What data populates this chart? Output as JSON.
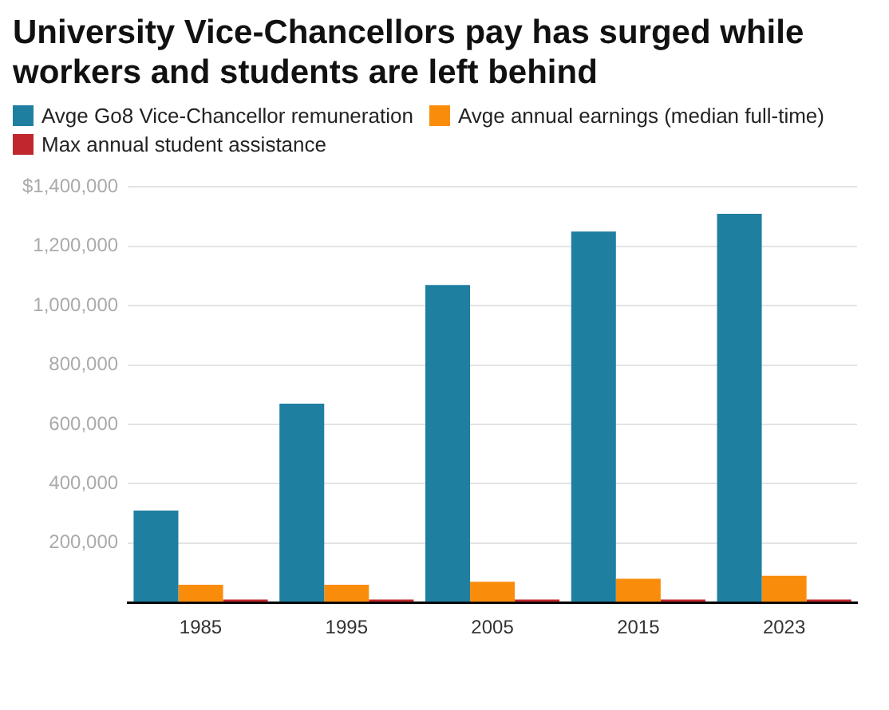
{
  "chart_data": {
    "type": "bar",
    "title": "University Vice-Chancellors pay has surged while workers and students are left behind",
    "categories": [
      "1985",
      "1995",
      "2005",
      "2015",
      "2023"
    ],
    "series": [
      {
        "name": "Avge Go8 Vice-Chancellor remuneration",
        "color": "#1f7fa0",
        "values": [
          310000,
          670000,
          1070000,
          1250000,
          1310000
        ]
      },
      {
        "name": "Avge annual earnings (median full-time)",
        "color": "#f98d0b",
        "values": [
          60000,
          60000,
          70000,
          80000,
          90000
        ]
      },
      {
        "name": "Max annual student assistance",
        "color": "#c0272d",
        "values": [
          10000,
          10000,
          10000,
          10000,
          10000
        ]
      }
    ],
    "ylim": [
      0,
      1400000
    ],
    "yticks": [
      {
        "value": 0,
        "label": null
      },
      {
        "value": 200000,
        "label": "200,000"
      },
      {
        "value": 400000,
        "label": "400,000"
      },
      {
        "value": 600000,
        "label": "600,000"
      },
      {
        "value": 800000,
        "label": "800,000"
      },
      {
        "value": 1000000,
        "label": "1,000,000"
      },
      {
        "value": 1200000,
        "label": "1,200,000"
      },
      {
        "value": 1400000,
        "label": "$1,400,000"
      }
    ],
    "grid": "y",
    "legend": "top"
  }
}
